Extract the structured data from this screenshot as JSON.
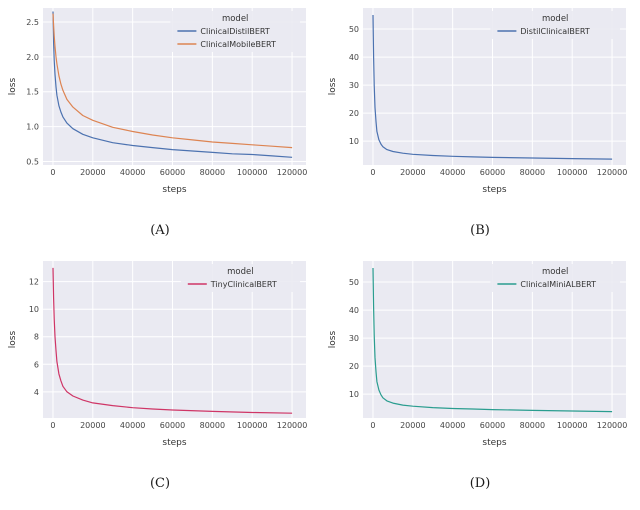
{
  "colors": {
    "plot_bg": "#eaeaf2",
    "grid": "#ffffff",
    "blue": "#4c72b0",
    "orange": "#dd8452",
    "crimson": "#cf3566",
    "teal": "#2a9d8f"
  },
  "chart_data": [
    {
      "type": "line",
      "caption": "(A)",
      "xlabel": "steps",
      "ylabel": "loss",
      "legend_title": "model",
      "xlim": [
        -5000,
        127000
      ],
      "ylim": [
        0.45,
        2.7
      ],
      "xticks": [
        0,
        20000,
        40000,
        60000,
        80000,
        100000,
        120000
      ],
      "xticklabels": [
        "0",
        "20000",
        "40000",
        "60000",
        "80000",
        "100000",
        "120000"
      ],
      "yticks": [
        0.5,
        1.0,
        1.5,
        2.0,
        2.5
      ],
      "yticklabels": [
        "0.5",
        "1.0",
        "1.5",
        "2.0",
        "2.5"
      ],
      "series": [
        {
          "name": "ClinicalDistilBERT",
          "color": "#4c72b0",
          "x": [
            0,
            300,
            600,
            1000,
            1500,
            2000,
            3000,
            4000,
            5000,
            7000,
            10000,
            15000,
            20000,
            30000,
            40000,
            50000,
            60000,
            70000,
            80000,
            90000,
            100000,
            110000,
            120000
          ],
          "y": [
            2.65,
            2.2,
            1.95,
            1.75,
            1.57,
            1.45,
            1.3,
            1.21,
            1.14,
            1.05,
            0.97,
            0.89,
            0.84,
            0.77,
            0.73,
            0.7,
            0.67,
            0.65,
            0.63,
            0.61,
            0.6,
            0.58,
            0.56
          ]
        },
        {
          "name": "ClinicalMobileBERT",
          "color": "#dd8452",
          "x": [
            0,
            300,
            600,
            1000,
            1500,
            2000,
            3000,
            4000,
            5000,
            7000,
            10000,
            15000,
            20000,
            30000,
            40000,
            50000,
            60000,
            70000,
            80000,
            90000,
            100000,
            110000,
            120000
          ],
          "y": [
            2.62,
            2.45,
            2.3,
            2.15,
            2.0,
            1.9,
            1.73,
            1.61,
            1.52,
            1.39,
            1.28,
            1.16,
            1.09,
            0.99,
            0.93,
            0.88,
            0.84,
            0.81,
            0.78,
            0.76,
            0.74,
            0.72,
            0.7
          ]
        }
      ]
    },
    {
      "type": "line",
      "caption": "(B)",
      "xlabel": "steps",
      "ylabel": "loss",
      "legend_title": "model",
      "xlim": [
        -5000,
        127000
      ],
      "ylim": [
        1.5,
        57.5
      ],
      "xticks": [
        0,
        20000,
        40000,
        60000,
        80000,
        100000,
        120000
      ],
      "xticklabels": [
        "0",
        "20000",
        "40000",
        "60000",
        "80000",
        "100000",
        "120000"
      ],
      "yticks": [
        10,
        20,
        30,
        40,
        50
      ],
      "yticklabels": [
        "10",
        "20",
        "30",
        "40",
        "50"
      ],
      "series": [
        {
          "name": "DistilClinicalBERT",
          "color": "#4c72b0",
          "x": [
            0,
            300,
            600,
            1000,
            1500,
            2000,
            3000,
            4000,
            5000,
            7000,
            10000,
            15000,
            20000,
            30000,
            40000,
            50000,
            60000,
            80000,
            100000,
            120000
          ],
          "y": [
            55,
            40,
            30,
            22,
            17,
            13.5,
            10.5,
            9.0,
            8.0,
            7.0,
            6.3,
            5.7,
            5.3,
            4.9,
            4.6,
            4.4,
            4.2,
            4.0,
            3.8,
            3.6
          ]
        }
      ]
    },
    {
      "type": "line",
      "caption": "(C)",
      "xlabel": "steps",
      "ylabel": "loss",
      "legend_title": "model",
      "xlim": [
        -5000,
        127000
      ],
      "ylim": [
        2.1,
        13.5
      ],
      "xticks": [
        0,
        20000,
        40000,
        60000,
        80000,
        100000,
        120000
      ],
      "xticklabels": [
        "0",
        "20000",
        "40000",
        "60000",
        "80000",
        "100000",
        "120000"
      ],
      "yticks": [
        4,
        6,
        8,
        10,
        12
      ],
      "yticklabels": [
        "4",
        "6",
        "8",
        "10",
        "12"
      ],
      "series": [
        {
          "name": "TinyClinicalBERT",
          "color": "#cf3566",
          "x": [
            0,
            300,
            600,
            1000,
            1500,
            2000,
            3000,
            4000,
            5000,
            7000,
            10000,
            15000,
            20000,
            30000,
            40000,
            50000,
            60000,
            80000,
            100000,
            120000
          ],
          "y": [
            13,
            10.8,
            9.3,
            8.0,
            7.0,
            6.2,
            5.3,
            4.8,
            4.4,
            4.0,
            3.7,
            3.4,
            3.2,
            3.0,
            2.85,
            2.75,
            2.68,
            2.58,
            2.5,
            2.45
          ]
        }
      ]
    },
    {
      "type": "line",
      "caption": "(D)",
      "xlabel": "steps",
      "ylabel": "loss",
      "legend_title": "model",
      "xlim": [
        -5000,
        127000
      ],
      "ylim": [
        1.5,
        57.5
      ],
      "xticks": [
        0,
        20000,
        40000,
        60000,
        80000,
        100000,
        120000
      ],
      "xticklabels": [
        "0",
        "20000",
        "40000",
        "60000",
        "80000",
        "100000",
        "120000"
      ],
      "yticks": [
        10,
        20,
        30,
        40,
        50
      ],
      "yticklabels": [
        "10",
        "20",
        "30",
        "40",
        "50"
      ],
      "series": [
        {
          "name": "ClinicalMiniALBERT",
          "color": "#2a9d8f",
          "x": [
            0,
            300,
            600,
            1000,
            1500,
            2000,
            3000,
            4000,
            5000,
            7000,
            10000,
            15000,
            20000,
            30000,
            40000,
            50000,
            60000,
            80000,
            100000,
            120000
          ],
          "y": [
            55,
            41,
            31,
            23,
            18,
            14.5,
            11.5,
            9.8,
            8.7,
            7.6,
            6.8,
            6.1,
            5.7,
            5.2,
            4.9,
            4.7,
            4.5,
            4.2,
            4.0,
            3.8
          ]
        }
      ]
    }
  ]
}
